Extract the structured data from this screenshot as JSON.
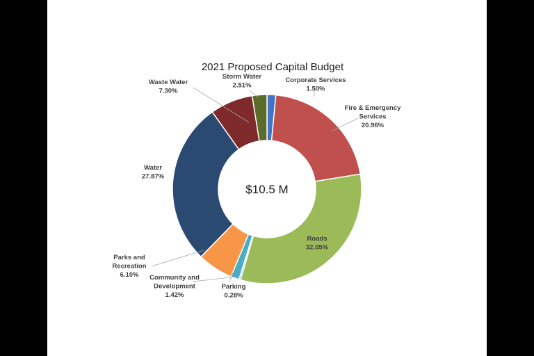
{
  "chart_data": {
    "type": "pie",
    "subtype": "doughnut",
    "title": "2021 Proposed Capital Budget",
    "center_label": "$10.5 M",
    "slices": [
      {
        "name": "Corporate Services",
        "lines": [
          "Corporate Services"
        ],
        "pct_label": "1.50%",
        "value": 1.5,
        "color": "#4472C4"
      },
      {
        "name": "Fire & Emergency Services",
        "lines": [
          "Fire & Emergency",
          "Services"
        ],
        "pct_label": "20.96%",
        "value": 20.96,
        "color": "#C0504D"
      },
      {
        "name": "Roads",
        "lines": [
          "Roads"
        ],
        "pct_label": "32.05%",
        "value": 32.05,
        "color": "#9BBB59"
      },
      {
        "name": "Parking",
        "lines": [
          "Parking"
        ],
        "pct_label": "0.28%",
        "value": 0.28,
        "color": "#8DB4E2"
      },
      {
        "name": "Community and Development",
        "lines": [
          "Community and",
          "Development"
        ],
        "pct_label": "1.42%",
        "value": 1.42,
        "color": "#4BACC6"
      },
      {
        "name": "Parks and Recreation",
        "lines": [
          "Parks and",
          "Recreation"
        ],
        "pct_label": "6.10%",
        "value": 6.1,
        "color": "#F79646"
      },
      {
        "name": "Water",
        "lines": [
          "Water"
        ],
        "pct_label": "27.87%",
        "value": 27.87,
        "color": "#2B4A72"
      },
      {
        "name": "Waste Water",
        "lines": [
          "Waste Water"
        ],
        "pct_label": "7.30%",
        "value": 7.3,
        "color": "#7F2A2A"
      },
      {
        "name": "Storm Water",
        "lines": [
          "Storm Water"
        ],
        "pct_label": "2.51%",
        "value": 2.51,
        "color": "#5A6B2A"
      }
    ],
    "legend": "none",
    "start_angle_deg": 0,
    "direction": "clockwise"
  }
}
